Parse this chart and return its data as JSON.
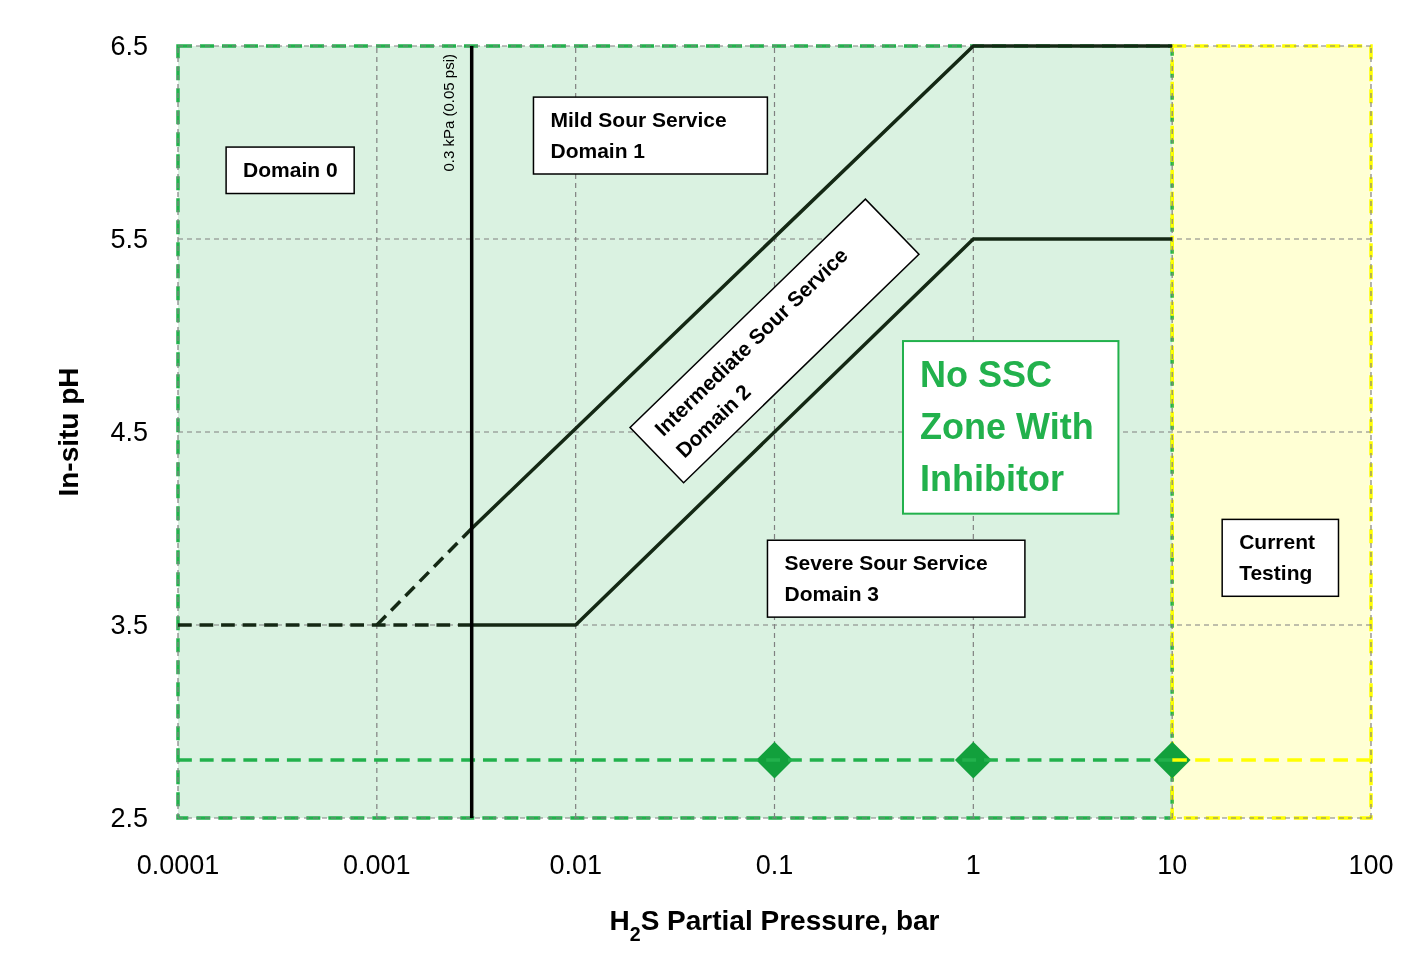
{
  "chart_data": {
    "type": "line",
    "xlabel": "H$_{2}$S Partial Pressure, bar",
    "ylabel": "In-situ pH",
    "log": "x",
    "grid": true,
    "xlim": [
      0.0001,
      100
    ],
    "xticks": [
      0.0001,
      0.001,
      0.01,
      0.1,
      1,
      10,
      100
    ],
    "ylim": [
      2.5,
      6.5
    ],
    "yticks": [
      2.5,
      3.5,
      4.5,
      5.5,
      6.5
    ],
    "series": [
      {
        "color": "#ffff00",
        "x": [
          10,
          100
        ],
        "values": [
          2.8,
          2.8
        ],
        "line_style": "dashed"
      },
      {
        "color": "#22b14c",
        "x": [
          0.0001,
          10
        ],
        "values": [
          2.8,
          2.8
        ],
        "line_style": "dashed"
      },
      {
        "color": "#142814",
        "x": [
          0.003,
          1,
          10
        ],
        "values": [
          4.0,
          6.5,
          6.5
        ],
        "line_style": "solid"
      },
      {
        "color": "#142814",
        "x": [
          0.001,
          0.003
        ],
        "values": [
          3.5,
          4.0
        ],
        "line_style": "dashed"
      },
      {
        "color": "#142814",
        "x": [
          0.003,
          0.01,
          1,
          10
        ],
        "values": [
          3.5,
          3.5,
          5.5,
          5.5
        ],
        "line_style": "solid"
      },
      {
        "color": "#142814",
        "x": [
          0.0001,
          0.003
        ],
        "values": [
          3.5,
          3.5
        ],
        "line_style": "dashed"
      },
      {
        "type": "scatter",
        "color": "#12a03c",
        "marker": "diamond",
        "x": [
          0.1,
          1,
          10
        ],
        "values": [
          2.8,
          2.8,
          2.8
        ]
      }
    ],
    "bands": [
      {
        "axis": "x",
        "from": 0.0001,
        "to": 10,
        "color": "#22b14c"
      },
      {
        "axis": "x",
        "from": 10,
        "to": 100,
        "color": "#ffff00"
      }
    ],
    "ref_lines": [
      {
        "axis": "x",
        "value": 0.003,
        "label": "0.3 kPa (0.05 psi)",
        "color": "#000000"
      }
    ],
    "annotations": [
      "Domain 0",
      "Mild Sour Service\nDomain 1",
      "Intermediate Sour Service\nDomain 2",
      "Severe Sour Service\nDomain 3",
      "No SSC\nZone With\nInhibitor",
      "Current\nTesting"
    ]
  }
}
